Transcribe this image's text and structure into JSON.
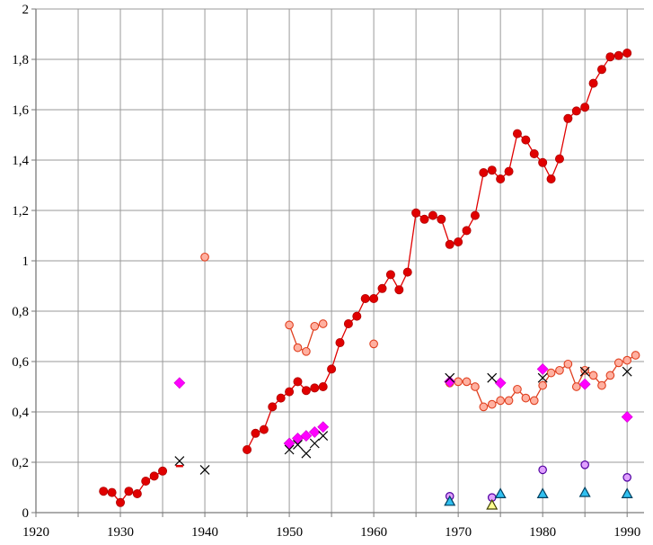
{
  "chart_data": {
    "type": "scatter",
    "xlim": [
      1920,
      1992
    ],
    "ylim": [
      0,
      2
    ],
    "x_ticks": [
      1920,
      1930,
      1940,
      1950,
      1960,
      1970,
      1980,
      1990
    ],
    "x_tick_labels": [
      "1920",
      "1930",
      "1940",
      "1950",
      "1960",
      "1970",
      "1980",
      "1990"
    ],
    "y_ticks": [
      0,
      0.2,
      0.4,
      0.6,
      0.8,
      1,
      1.2,
      1.4,
      1.6,
      1.8,
      2
    ],
    "y_tick_labels": [
      "0",
      "0,2",
      "0,4",
      "0,6",
      "0,8",
      "1",
      "1,2",
      "1,4",
      "1,6",
      "1,8",
      "2"
    ],
    "x_grid_minor_step": 5,
    "grid": true,
    "title": "",
    "xlabel": "",
    "ylabel": "",
    "legend": "none",
    "series": [
      {
        "marker": "circle-filled",
        "color": "#e00000",
        "edge": "#b00000",
        "line": true,
        "segments": [
          {
            "x": [
              1928,
              1929,
              1930,
              1931,
              1932,
              1933,
              1934,
              1935
            ],
            "y": [
              0.085,
              0.08,
              0.04,
              0.085,
              0.075,
              0.125,
              0.145,
              0.165
            ]
          },
          {
            "x": [
              1945,
              1946,
              1947,
              1948,
              1949,
              1950,
              1951,
              1952,
              1953,
              1954,
              1955,
              1956,
              1957,
              1958,
              1959,
              1960,
              1961,
              1962,
              1963,
              1964,
              1965,
              1966,
              1967,
              1968,
              1969,
              1970,
              1971,
              1972,
              1973,
              1974,
              1975,
              1976,
              1977,
              1978,
              1979,
              1980,
              1981,
              1982,
              1983,
              1984,
              1985,
              1986,
              1987,
              1988,
              1989,
              1990
            ],
            "y": [
              0.25,
              0.315,
              0.33,
              0.42,
              0.455,
              0.48,
              0.52,
              0.485,
              0.495,
              0.5,
              0.57,
              0.675,
              0.75,
              0.78,
              0.85,
              0.85,
              0.89,
              0.945,
              0.885,
              0.955,
              1.19,
              1.165,
              1.18,
              1.165,
              1.065,
              1.075,
              1.12,
              1.18,
              1.35,
              1.36,
              1.325,
              1.355,
              1.505,
              1.48,
              1.425,
              1.39,
              1.325,
              1.405,
              1.565,
              1.595,
              1.61,
              1.705,
              1.76,
              1.81,
              1.815,
              1.825
            ]
          }
        ]
      },
      {
        "marker": "circle-open",
        "color": "#ffb0a0",
        "edge": "#e04020",
        "line": true,
        "segments": [
          {
            "x": [
              1940
            ],
            "y": [
              1.015
            ]
          },
          {
            "x": [
              1950,
              1951,
              1952,
              1953,
              1954
            ],
            "y": [
              0.745,
              0.655,
              0.64,
              0.74,
              0.75
            ]
          },
          {
            "x": [
              1960
            ],
            "y": [
              0.67
            ]
          },
          {
            "x": [
              1969,
              1970,
              1971,
              1972,
              1973,
              1974,
              1975,
              1976,
              1977,
              1978,
              1979,
              1980,
              1981,
              1982,
              1983,
              1984,
              1985,
              1986,
              1987,
              1988,
              1989,
              1990,
              1991
            ],
            "y": [
              0.515,
              0.52,
              0.52,
              0.5,
              0.42,
              0.43,
              0.445,
              0.445,
              0.49,
              0.455,
              0.445,
              0.505,
              0.555,
              0.565,
              0.59,
              0.5,
              0.565,
              0.545,
              0.505,
              0.545,
              0.595,
              0.605,
              0.625
            ]
          }
        ]
      },
      {
        "marker": "diamond",
        "color": "#ff00ff",
        "edge": "#cc00cc",
        "line": false,
        "segments": [
          {
            "x": [
              1937,
              1950,
              1951,
              1952,
              1953,
              1954,
              1969,
              1975,
              1980,
              1985,
              1990
            ],
            "y": [
              0.515,
              0.275,
              0.295,
              0.305,
              0.32,
              0.34,
              0.52,
              0.515,
              0.57,
              0.51,
              0.38
            ]
          }
        ]
      },
      {
        "marker": "x",
        "color": "#000000",
        "edge": "#000000",
        "line": false,
        "segments": [
          {
            "x": [
              1937,
              1940,
              1950,
              1951,
              1952,
              1953,
              1954,
              1969,
              1974,
              1980,
              1985,
              1990
            ],
            "y": [
              0.205,
              0.17,
              0.25,
              0.27,
              0.235,
              0.275,
              0.305,
              0.535,
              0.535,
              0.535,
              0.56,
              0.56
            ]
          }
        ]
      },
      {
        "marker": "circle-lavender",
        "color": "#e0a0ff",
        "edge": "#5000a0",
        "line": false,
        "segments": [
          {
            "x": [
              1969,
              1974,
              1980,
              1985,
              1990
            ],
            "y": [
              0.065,
              0.06,
              0.17,
              0.19,
              0.14
            ]
          }
        ]
      },
      {
        "marker": "triangle-cyan",
        "color": "#30c0f0",
        "edge": "#004060",
        "line": false,
        "segments": [
          {
            "x": [
              1969,
              1975,
              1980,
              1985,
              1990
            ],
            "y": [
              0.045,
              0.075,
              0.075,
              0.08,
              0.075
            ]
          }
        ]
      },
      {
        "marker": "triangle-yellow",
        "color": "#ffff90",
        "edge": "#404000",
        "line": false,
        "segments": [
          {
            "x": [
              1974
            ],
            "y": [
              0.03
            ]
          }
        ]
      },
      {
        "marker": "dash",
        "color": "#e00000",
        "edge": "#e00000",
        "line": false,
        "segments": [
          {
            "x": [
              1937
            ],
            "y": [
              0.185
            ]
          }
        ]
      }
    ]
  }
}
